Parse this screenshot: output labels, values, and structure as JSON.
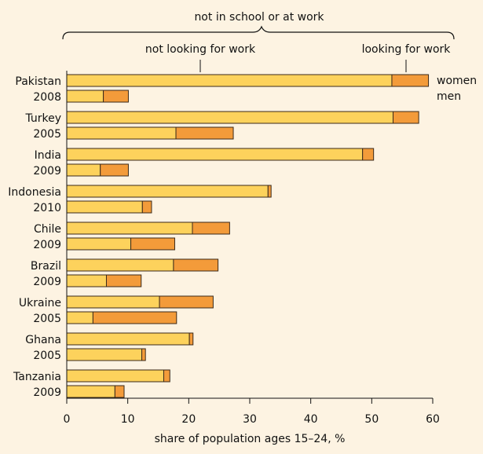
{
  "chart_data": {
    "type": "bar",
    "orientation": "horizontal",
    "stacked": true,
    "xlabel": "share of population ages 15–24, %",
    "xlim": [
      0,
      60
    ],
    "xticks": [
      0,
      10,
      20,
      30,
      40,
      50,
      60
    ],
    "grid": false,
    "header_label": "not in school or at work",
    "segment_labels": [
      "not looking for work",
      "looking for work"
    ],
    "row_labels": [
      "women",
      "men"
    ],
    "colors": {
      "not_looking": "#fdd25c",
      "looking": "#f39b3a",
      "outline": "#3a2a1a",
      "background": "#fdf3e2"
    },
    "groups": [
      {
        "country": "Pakistan",
        "year": "2008",
        "women": [
          53.3,
          6.0
        ],
        "men": [
          6.0,
          4.1
        ]
      },
      {
        "country": "Turkey",
        "year": "2005",
        "women": [
          53.5,
          4.2
        ],
        "men": [
          17.9,
          9.4
        ]
      },
      {
        "country": "India",
        "year": "2009",
        "women": [
          48.5,
          1.8
        ],
        "men": [
          5.5,
          4.6
        ]
      },
      {
        "country": "Indonesia",
        "year": "2010",
        "women": [
          33.0,
          0.5
        ],
        "men": [
          12.4,
          1.5
        ]
      },
      {
        "country": "Chile",
        "year": "2009",
        "women": [
          20.6,
          6.1
        ],
        "men": [
          10.5,
          7.2
        ]
      },
      {
        "country": "Brazil",
        "year": "2009",
        "women": [
          17.5,
          7.3
        ],
        "men": [
          6.5,
          5.7
        ]
      },
      {
        "country": "Ukraine",
        "year": "2005",
        "women": [
          15.2,
          8.8
        ],
        "men": [
          4.3,
          13.7
        ]
      },
      {
        "country": "Ghana",
        "year": "2005",
        "women": [
          20.1,
          0.6
        ],
        "men": [
          12.3,
          0.6
        ]
      },
      {
        "country": "Tanzania",
        "year": "2009",
        "women": [
          15.9,
          1.0
        ],
        "men": [
          7.9,
          1.5
        ]
      }
    ]
  }
}
